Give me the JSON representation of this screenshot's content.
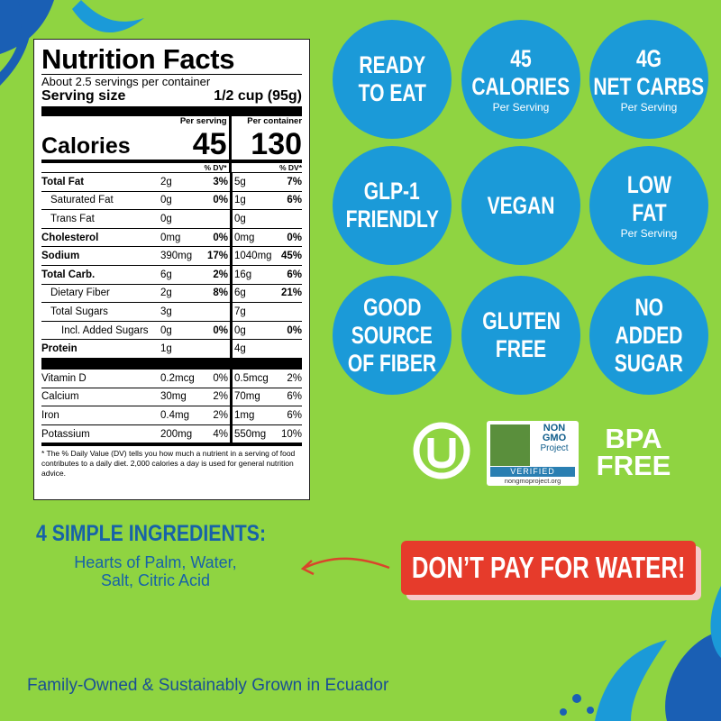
{
  "nutrition_facts": {
    "title": "Nutrition Facts",
    "servings": "About 2.5 servings per container",
    "serving_size_label": "Serving size",
    "serving_size": "1/2 cup (95g)",
    "per_serving": "Per serving",
    "per_container": "Per container",
    "calories_label": "Calories",
    "calories_serving": "45",
    "calories_container": "130",
    "dv_header": "% DV*",
    "nutrients": [
      {
        "name": "Total Fat",
        "serving": "2g",
        "serving_dv": "3%",
        "container": "5g",
        "container_dv": "7%"
      },
      {
        "name": "Saturated Fat",
        "serving": "0g",
        "serving_dv": "0%",
        "container": "1g",
        "container_dv": "6%"
      },
      {
        "name": "Trans Fat",
        "serving": "0g",
        "container": "0g"
      },
      {
        "name": "Cholesterol",
        "serving": "0mg",
        "serving_dv": "0%",
        "container": "0mg",
        "container_dv": "0%"
      },
      {
        "name": "Sodium",
        "serving": "390mg",
        "serving_dv": "17%",
        "container": "1040mg",
        "container_dv": "45%"
      },
      {
        "name": "Total Carb.",
        "serving": "6g",
        "serving_dv": "2%",
        "container": "16g",
        "container_dv": "6%"
      },
      {
        "name": "Dietary Fiber",
        "serving": "2g",
        "serving_dv": "8%",
        "container": "6g",
        "container_dv": "21%"
      },
      {
        "name": "Total Sugars",
        "serving": "3g",
        "container": "7g"
      },
      {
        "name": "Incl. Added Sugars",
        "serving": "0g",
        "serving_dv": "0%",
        "container": "0g",
        "container_dv": "0%"
      },
      {
        "name": "Protein",
        "serving": "1g",
        "container": "4g"
      }
    ],
    "vitamins": [
      {
        "name": "Vitamin D",
        "serving": "0.2mcg",
        "serving_dv": "0%",
        "container": "0.5mcg",
        "container_dv": "2%"
      },
      {
        "name": "Calcium",
        "serving": "30mg",
        "serving_dv": "2%",
        "container": "70mg",
        "container_dv": "6%"
      },
      {
        "name": "Iron",
        "serving": "0.4mg",
        "serving_dv": "2%",
        "container": "1mg",
        "container_dv": "6%"
      },
      {
        "name": "Potassium",
        "serving": "200mg",
        "serving_dv": "4%",
        "container": "550mg",
        "container_dv": "10%"
      }
    ],
    "footnote": "* The % Daily Value (DV) tells you how much a nutrient in a serving of food contributes to a daily diet. 2,000 calories a day is used for general nutrition advice."
  },
  "badges": [
    {
      "lines": [
        "READY",
        "TO EAT"
      ]
    },
    {
      "lines": [
        "45",
        "CALORIES"
      ],
      "sub": "Per Serving"
    },
    {
      "lines": [
        "4G",
        "NET CARBS"
      ],
      "sub": "Per Serving"
    },
    {
      "lines": [
        "GLP-1",
        "FRIENDLY"
      ]
    },
    {
      "lines": [
        "VEGAN"
      ]
    },
    {
      "lines": [
        "LOW",
        "FAT"
      ],
      "sub": "Per Serving"
    },
    {
      "lines": [
        "GOOD",
        "SOURCE",
        "OF FIBER"
      ]
    },
    {
      "lines": [
        "GLUTEN",
        "FREE"
      ]
    },
    {
      "lines": [
        "NO",
        "ADDED",
        "SUGAR"
      ]
    }
  ],
  "certifications": {
    "nongmo_lines": [
      "NON",
      "GMO",
      "Project"
    ],
    "nongmo_verified": "VERIFIED",
    "nongmo_url": "nongmoproject.org",
    "bpa_lines": [
      "BPA",
      "FREE"
    ]
  },
  "ingredients": {
    "heading": "4 SIMPLE INGREDIENTS:",
    "lines": [
      "Hearts of Palm, Water,",
      "Salt, Citric Acid"
    ]
  },
  "slogan": "DON’T PAY FOR WATER!",
  "footer": "Family-Owned & Sustainably Grown in Ecuador"
}
